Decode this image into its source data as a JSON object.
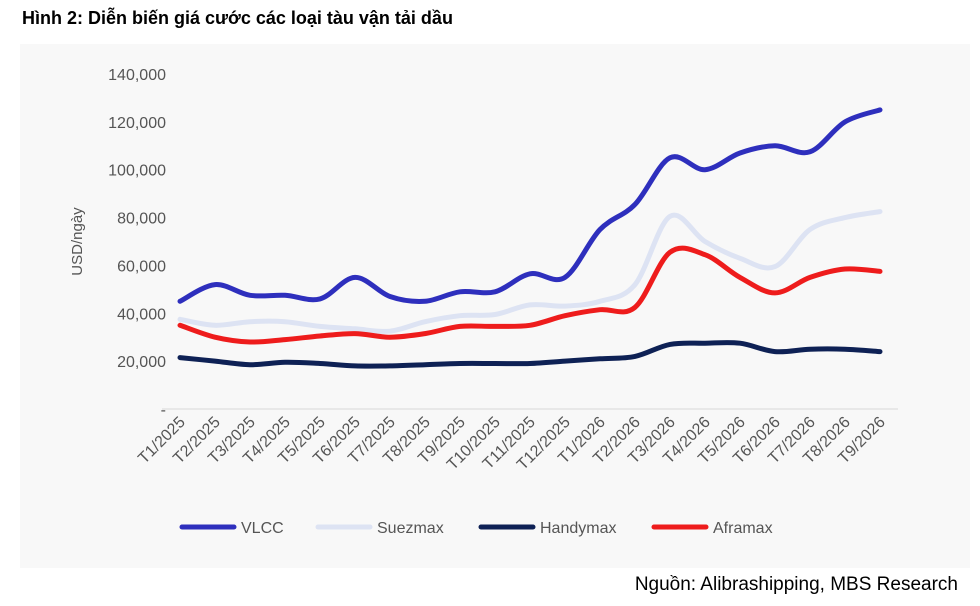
{
  "figure_title": "Hình 2:  Diễn biến giá cước các loại tàu vận tải dầu",
  "source": "Nguồn: Alibrashipping, MBS Research",
  "chart_data": {
    "type": "line",
    "title": "",
    "xlabel": "",
    "ylabel": "USD/ngày",
    "ylim": [
      0,
      140000
    ],
    "yticks": [
      0,
      20000,
      40000,
      60000,
      80000,
      100000,
      120000,
      140000
    ],
    "ytick_labels": [
      "-",
      "20,000",
      "40,000",
      "60,000",
      "80,000",
      "100,000",
      "120,000",
      "140,000"
    ],
    "grid": false,
    "legend_position": "bottom",
    "categories": [
      "T1/2025",
      "T2/2025",
      "T3/2025",
      "T4/2025",
      "T5/2025",
      "T6/2025",
      "T7/2025",
      "T8/2025",
      "T9/2025",
      "T10/2025",
      "T11/2025",
      "T12/2025",
      "T1/2026",
      "T2/2026",
      "T3/2026",
      "T4/2026",
      "T5/2026",
      "T6/2026",
      "T7/2026",
      "T8/2026",
      "T9/2026"
    ],
    "series": [
      {
        "name": "Suezmax",
        "color": "#dde3f3",
        "values": [
          37500,
          35000,
          36500,
          36500,
          34500,
          33500,
          32500,
          36500,
          39000,
          39500,
          43500,
          43000,
          45000,
          52000,
          80500,
          70000,
          63000,
          59500,
          75000,
          80000,
          82500
        ]
      },
      {
        "name": "Handymax",
        "color": "#0e2155",
        "values": [
          21500,
          20000,
          18500,
          19500,
          19000,
          18000,
          18000,
          18500,
          19000,
          19000,
          19000,
          20000,
          21000,
          22000,
          27000,
          27500,
          27500,
          24000,
          25000,
          25000,
          24000
        ]
      },
      {
        "name": "Aframax",
        "color": "#ee1c1c",
        "values": [
          35000,
          30000,
          28000,
          29000,
          30500,
          31500,
          30000,
          31500,
          34500,
          34500,
          35000,
          39000,
          41500,
          42500,
          65500,
          64500,
          55000,
          48500,
          55000,
          58500,
          57500
        ]
      },
      {
        "name": "VLCC",
        "color": "#2e2fbd",
        "values": [
          45000,
          52000,
          47500,
          47500,
          46000,
          55000,
          47000,
          45000,
          49000,
          49000,
          56500,
          55000,
          75000,
          85500,
          105000,
          100000,
          107000,
          110000,
          107500,
          120000,
          125000
        ]
      }
    ],
    "legend_order": [
      "VLCC",
      "Suezmax",
      "Handymax",
      "Aframax"
    ]
  }
}
